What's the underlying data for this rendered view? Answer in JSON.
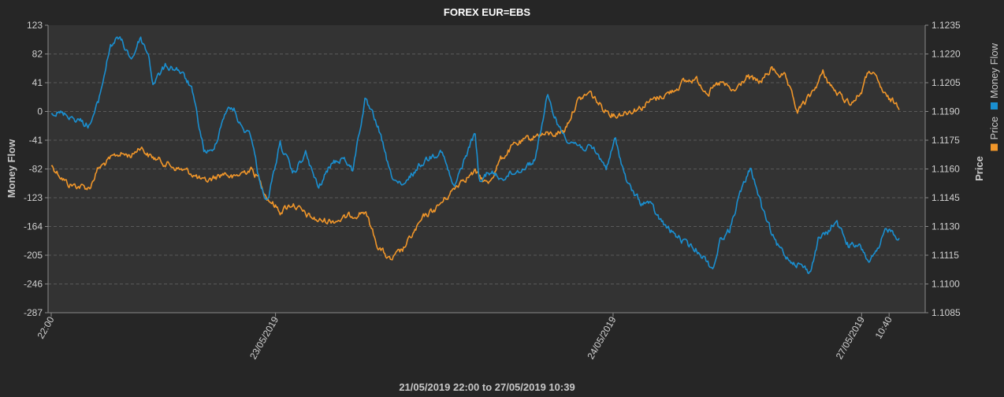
{
  "chart_data": {
    "type": "line",
    "title": "FOREX EUR=EBS",
    "subtitle": "21/05/2019 22:00 to 27/05/2019 10:39",
    "xlabel": "",
    "y_left_label": "Money Flow",
    "y_right_label": "Price",
    "y_left_ticks": [
      "123",
      "82",
      "41",
      "0",
      "-41",
      "-82",
      "-123",
      "-164",
      "-205",
      "-246",
      "-287"
    ],
    "y_right_ticks": [
      "1.1235",
      "1.1220",
      "1.1205",
      "1.1190",
      "1.1175",
      "1.1160",
      "1.1145",
      "1.1130",
      "1.1115",
      "1.1100",
      "1.1085"
    ],
    "y_left_range": [
      -287,
      123
    ],
    "y_right_range": [
      1.1085,
      1.1235
    ],
    "x_ticks": [
      {
        "label": "22:00",
        "t": 0
      },
      {
        "label": "23/05/2019",
        "t": 0.2645
      },
      {
        "label": "24/05/2019",
        "t": 0.6626
      },
      {
        "label": "27/05/2019",
        "t": 0.9557
      },
      {
        "label": "10:40",
        "t": 0.9881
      }
    ],
    "grid": true,
    "legend_position": "right",
    "series": [
      {
        "name": "Money Flow",
        "axis": "left",
        "color": "#1a8fd0",
        "x": [
          0,
          0.02,
          0.045,
          0.055,
          0.07,
          0.08,
          0.095,
          0.105,
          0.115,
          0.12,
          0.135,
          0.15,
          0.165,
          0.18,
          0.19,
          0.205,
          0.215,
          0.225,
          0.235,
          0.245,
          0.255,
          0.27,
          0.285,
          0.3,
          0.315,
          0.33,
          0.345,
          0.355,
          0.37,
          0.385,
          0.4,
          0.415,
          0.425,
          0.44,
          0.46,
          0.475,
          0.49,
          0.5,
          0.505,
          0.515,
          0.53,
          0.55,
          0.57,
          0.585,
          0.6,
          0.61,
          0.625,
          0.64,
          0.655,
          0.665,
          0.68,
          0.695,
          0.705,
          0.715,
          0.725,
          0.735,
          0.75,
          0.765,
          0.78,
          0.79,
          0.8,
          0.81,
          0.825,
          0.84,
          0.855,
          0.87,
          0.885,
          0.895,
          0.905,
          0.915,
          0.925,
          0.94,
          0.955,
          0.965,
          0.975,
          0.985,
          0.995,
          1.0
        ],
        "values": [
          0,
          -5,
          -20,
          10,
          95,
          105,
          75,
          105,
          80,
          40,
          65,
          60,
          35,
          -55,
          -60,
          0,
          5,
          -25,
          -30,
          -95,
          -130,
          -45,
          -90,
          -60,
          -110,
          -75,
          -65,
          -85,
          15,
          -20,
          -90,
          -110,
          -90,
          -70,
          -55,
          -110,
          -60,
          -30,
          -105,
          -85,
          -95,
          -85,
          -70,
          20,
          -25,
          -40,
          -50,
          -55,
          -80,
          -40,
          -105,
          -130,
          -130,
          -150,
          -165,
          -175,
          -190,
          -200,
          -225,
          -180,
          -170,
          -125,
          -80,
          -145,
          -190,
          -210,
          -220,
          -230,
          -180,
          -175,
          -155,
          -190,
          -195,
          -215,
          -200,
          -165,
          -175,
          -180
        ]
      },
      {
        "name": "Price",
        "axis": "right",
        "color": "#f0962a",
        "x": [
          0,
          0.02,
          0.045,
          0.055,
          0.07,
          0.08,
          0.095,
          0.105,
          0.115,
          0.125,
          0.135,
          0.15,
          0.165,
          0.18,
          0.19,
          0.205,
          0.215,
          0.225,
          0.235,
          0.245,
          0.255,
          0.27,
          0.285,
          0.3,
          0.315,
          0.33,
          0.345,
          0.355,
          0.37,
          0.385,
          0.4,
          0.415,
          0.425,
          0.44,
          0.455,
          0.47,
          0.485,
          0.5,
          0.515,
          0.53,
          0.545,
          0.56,
          0.575,
          0.59,
          0.605,
          0.62,
          0.635,
          0.65,
          0.665,
          0.68,
          0.695,
          0.705,
          0.715,
          0.73,
          0.745,
          0.76,
          0.775,
          0.79,
          0.805,
          0.82,
          0.835,
          0.85,
          0.865,
          0.88,
          0.895,
          0.91,
          0.925,
          0.94,
          0.945,
          0.955,
          0.965,
          0.975,
          0.985,
          1.0
        ],
        "values": [
          1.1162,
          1.1152,
          1.115,
          1.116,
          1.1165,
          1.1168,
          1.1167,
          1.1172,
          1.1167,
          1.1165,
          1.1163,
          1.116,
          1.1158,
          1.1153,
          1.1155,
          1.1158,
          1.1155,
          1.1158,
          1.116,
          1.1155,
          1.1145,
          1.1138,
          1.1142,
          1.1136,
          1.1133,
          1.1133,
          1.1134,
          1.1136,
          1.1138,
          1.112,
          1.1112,
          1.1118,
          1.1125,
          1.1135,
          1.114,
          1.1147,
          1.1155,
          1.1158,
          1.1152,
          1.1165,
          1.1172,
          1.1175,
          1.1178,
          1.1178,
          1.118,
          1.1195,
          1.12,
          1.1192,
          1.1188,
          1.119,
          1.1192,
          1.1195,
          1.1197,
          1.12,
          1.1205,
          1.1207,
          1.12,
          1.1205,
          1.12,
          1.1208,
          1.1205,
          1.1212,
          1.1208,
          1.119,
          1.1198,
          1.121,
          1.12,
          1.1195,
          1.1195,
          1.12,
          1.1212,
          1.1205,
          1.1197,
          1.1193
        ]
      }
    ]
  },
  "colors": {
    "background": "#262626",
    "plot_background": "#333333",
    "grid": "#5a5a5a",
    "axis": "#8a8a8a"
  }
}
